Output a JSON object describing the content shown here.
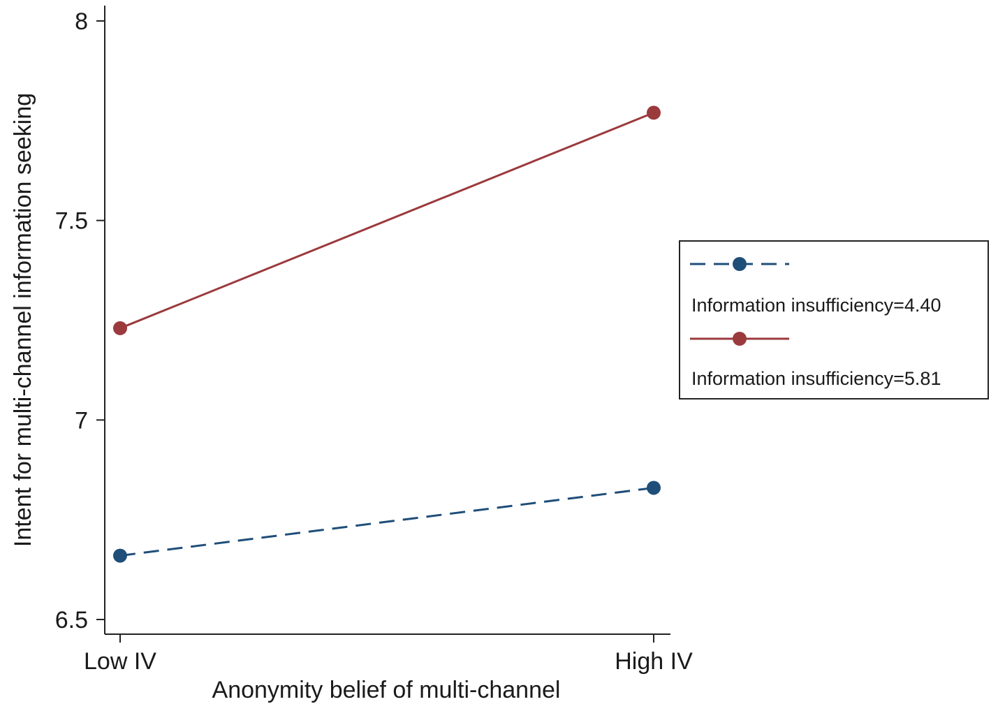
{
  "chart_data": {
    "type": "line",
    "categories": [
      "Low IV",
      "High IV"
    ],
    "xlabel": "Anonymity belief of multi-channel",
    "ylabel": "Intent for multi-channel information seeking",
    "ylim": [
      6.5,
      8
    ],
    "yticks": [
      6.5,
      7,
      7.5,
      8
    ],
    "ytick_labels": [
      "6.5",
      "7",
      "7.5",
      "8"
    ],
    "grid": false,
    "legend_position": "right",
    "series": [
      {
        "name": "Information insufficiency=4.40",
        "values": [
          6.66,
          6.83
        ],
        "color": "#1f4e79",
        "style": "dashed"
      },
      {
        "name": "Information insufficiency=5.81",
        "values": [
          7.23,
          7.77
        ],
        "color": "#9b3a3d",
        "style": "solid"
      }
    ]
  }
}
